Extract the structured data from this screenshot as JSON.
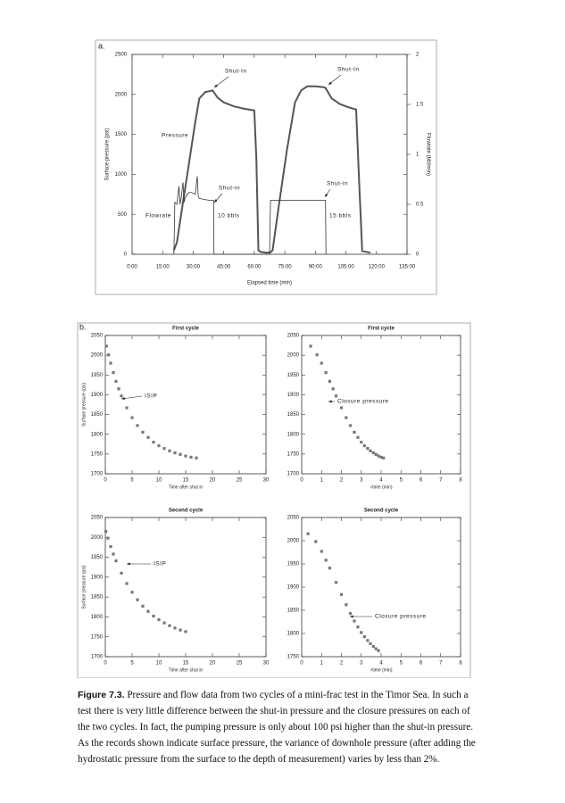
{
  "chart_data": [
    {
      "type": "line",
      "panel_label": "a.",
      "xlabel": "Elapsed time (min)",
      "ylabel": "Surface pressure (psi)",
      "y2label": "Flowrate (bbl/min)",
      "xlim": [
        0,
        135
      ],
      "xticks": [
        {
          "value": 0,
          "label": "0:00"
        },
        {
          "value": 15,
          "label": "15:00"
        },
        {
          "value": 30,
          "label": "30:00"
        },
        {
          "value": 45,
          "label": "45:00"
        },
        {
          "value": 60,
          "label": "60:00"
        },
        {
          "value": 75,
          "label": "75:00"
        },
        {
          "value": 90,
          "label": "90:00"
        },
        {
          "value": 105,
          "label": "105:00"
        },
        {
          "value": 120,
          "label": "120:00"
        },
        {
          "value": 135,
          "label": "135:00"
        }
      ],
      "ylim": [
        0,
        2500
      ],
      "yticks": [
        0,
        500,
        1000,
        1500,
        2000,
        2500
      ],
      "y2lim": [
        0,
        2
      ],
      "y2ticks": [
        0,
        0.5,
        1,
        1.5,
        2
      ],
      "series": [
        {
          "name": "Pressure",
          "color": "#555555",
          "x": [
            20.5,
            22,
            25,
            28,
            31,
            33,
            36,
            38,
            39.5,
            42,
            45,
            50,
            55,
            60,
            61,
            62,
            63,
            66,
            68,
            69,
            72,
            76,
            80,
            83,
            86,
            90,
            94,
            95,
            98,
            102,
            106,
            110,
            111.5,
            113,
            116,
            117
          ],
          "values": [
            50,
            150,
            650,
            1150,
            1650,
            1950,
            2030,
            2040,
            2050,
            1960,
            1900,
            1850,
            1820,
            1800,
            1200,
            50,
            30,
            20,
            25,
            50,
            600,
            1300,
            1900,
            2050,
            2100,
            2100,
            2090,
            2080,
            1950,
            1880,
            1840,
            1810,
            900,
            40,
            25,
            20
          ]
        },
        {
          "name": "Flowrate",
          "color": "#333333",
          "axis": "y2",
          "x": [
            20.5,
            21,
            22,
            23,
            23.6,
            24,
            25,
            25.5,
            26,
            27,
            28,
            29,
            30,
            31,
            32,
            32.5,
            33,
            35,
            38,
            40,
            40.2,
            67.5,
            68,
            95,
            95.2
          ],
          "values": [
            0,
            0.52,
            0.5,
            0.68,
            0.5,
            0.55,
            0.72,
            0.52,
            0.56,
            0.6,
            0.62,
            0.62,
            0.61,
            0.6,
            0.78,
            0.58,
            0.56,
            0.55,
            0.54,
            0.54,
            0,
            0,
            0.54,
            0.54,
            0
          ]
        }
      ],
      "annotations": [
        "Shut-In",
        "Shut-In",
        "Shut-in",
        "Shut-in",
        "10 bbls",
        "15 bbls"
      ]
    },
    {
      "type": "scatter",
      "panel_label": "b.",
      "title": "First cycle",
      "xlabel": "Time after shut in",
      "ylabel": "Surface pressure (psi)",
      "color": "#777777",
      "xlim": [
        0,
        30
      ],
      "xticks": [
        0,
        5,
        10,
        15,
        20,
        25,
        30
      ],
      "ylim": [
        1700,
        2050
      ],
      "yticks": [
        1700,
        1750,
        1800,
        1850,
        1900,
        1950,
        2000,
        2050
      ],
      "x": [
        0.2,
        0.6,
        1,
        1.5,
        2,
        2.5,
        3,
        4,
        5,
        6,
        7,
        8,
        9,
        10,
        11,
        12,
        13,
        14,
        15,
        16,
        17
      ],
      "values": [
        2023,
        2001,
        1980,
        1956,
        1934,
        1915,
        1897,
        1867,
        1842,
        1822,
        1805,
        1792,
        1780,
        1771,
        1764,
        1758,
        1753,
        1749,
        1745,
        1742,
        1740
      ],
      "annotations": [
        "ISIP"
      ]
    },
    {
      "type": "scatter",
      "title": "First cycle",
      "xlabel": "√time (min)",
      "color": "#777777",
      "xlim": [
        0,
        8
      ],
      "xticks": [
        0,
        1,
        2,
        3,
        4,
        5,
        6,
        7,
        8
      ],
      "ylim": [
        1700,
        2050
      ],
      "yticks": [
        1700,
        1750,
        1800,
        1850,
        1900,
        1950,
        2000,
        2050
      ],
      "x": [
        0.45,
        0.77,
        1,
        1.22,
        1.41,
        1.58,
        1.73,
        2,
        2.24,
        2.45,
        2.65,
        2.83,
        3,
        3.16,
        3.32,
        3.46,
        3.61,
        3.74,
        3.87,
        4,
        4.12
      ],
      "values": [
        2023,
        2001,
        1980,
        1956,
        1934,
        1915,
        1897,
        1867,
        1842,
        1822,
        1805,
        1792,
        1780,
        1771,
        1764,
        1758,
        1753,
        1749,
        1745,
        1742,
        1740
      ],
      "annotations": [
        "Closure pressure"
      ]
    },
    {
      "type": "scatter",
      "title": "Second cycle",
      "xlabel": "Time after shut in",
      "ylabel": "Surface pressure (psi)",
      "color": "#777777",
      "xlim": [
        0,
        30
      ],
      "xticks": [
        0,
        5,
        10,
        15,
        20,
        25,
        30
      ],
      "ylim": [
        1700,
        2050
      ],
      "yticks": [
        1700,
        1750,
        1800,
        1850,
        1900,
        1950,
        2000,
        2050
      ],
      "x": [
        0.1,
        0.5,
        1,
        1.5,
        2,
        3,
        4,
        5,
        6,
        7,
        8,
        9,
        10,
        11,
        12,
        13,
        14,
        15
      ],
      "values": [
        2015,
        1998,
        1977,
        1958,
        1941,
        1910,
        1884,
        1862,
        1843,
        1827,
        1814,
        1802,
        1793,
        1785,
        1778,
        1772,
        1767,
        1763
      ],
      "annotations": [
        "ISIP"
      ]
    },
    {
      "type": "scatter",
      "title": "Second cycle",
      "xlabel": "√time (min)",
      "color": "#777777",
      "xlim": [
        0,
        8
      ],
      "xticks": [
        0,
        1,
        2,
        3,
        4,
        5,
        6,
        7,
        8
      ],
      "ylim": [
        1750,
        2050
      ],
      "yticks": [
        1750,
        1800,
        1850,
        1900,
        1950,
        2000,
        2050
      ],
      "x": [
        0.32,
        0.71,
        1,
        1.22,
        1.41,
        1.73,
        2,
        2.24,
        2.45,
        2.65,
        2.83,
        3,
        3.16,
        3.32,
        3.46,
        3.61,
        3.74,
        3.87
      ],
      "values": [
        2015,
        1998,
        1977,
        1958,
        1941,
        1910,
        1884,
        1862,
        1843,
        1827,
        1814,
        1802,
        1793,
        1785,
        1778,
        1772,
        1767,
        1763
      ],
      "annotations": [
        "Closure pressure"
      ]
    }
  ],
  "caption": {
    "label": "Figure 7.3.",
    "text": "Pressure and flow data from two cycles of a mini-frac test in the Timor Sea. In such a test there is very little difference between the shut-in pressure and the closure pressures on each of the two cycles. In fact, the pumping pressure is only about 100 psi higher than the shut-in pressure. As the records shown indicate surface pressure, the variance of downhole pressure (after adding the hydrostatic pressure from the surface to the depth of measurement) varies by less than 2%."
  }
}
